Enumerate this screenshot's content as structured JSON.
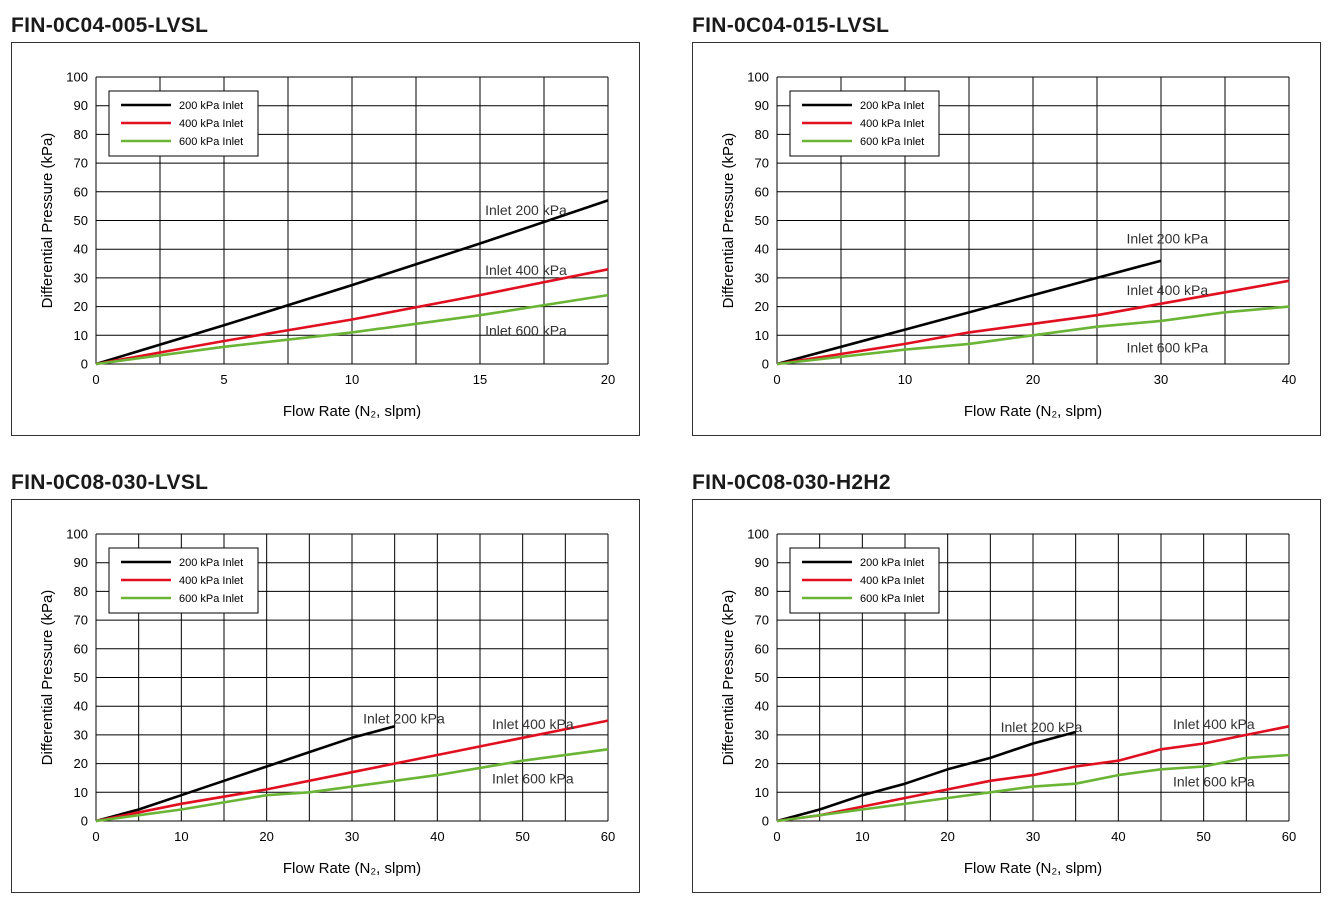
{
  "colors": {
    "s200": "#000000",
    "s400": "#e01020",
    "s600": "#6ab536"
  },
  "chart_data": [
    {
      "type": "line",
      "title": "FIN-0C04-005-LVSL",
      "xlabel": "Flow Rate (N₂, slpm)",
      "ylabel": "Differential Pressure (kPa)",
      "xlim": [
        0,
        20
      ],
      "ylim": [
        0,
        100
      ],
      "xticks": [
        0,
        5,
        10,
        15,
        20
      ],
      "xgrid_step": 2.5,
      "yticks": [
        0,
        10,
        20,
        30,
        40,
        50,
        60,
        70,
        80,
        90,
        100
      ],
      "legend": [
        "200 kPa Inlet",
        "400 kPa Inlet",
        "600 kPa Inlet"
      ],
      "series": [
        {
          "name": "200 kPa Inlet",
          "x": [
            0,
            5,
            10,
            15,
            20
          ],
          "values": [
            0,
            13.5,
            27.5,
            42,
            57
          ]
        },
        {
          "name": "400 kPa Inlet",
          "x": [
            0,
            5,
            10,
            15,
            20
          ],
          "values": [
            0,
            8,
            15.5,
            24,
            33
          ]
        },
        {
          "name": "600 kPa Inlet",
          "x": [
            0,
            5,
            10,
            15,
            20
          ],
          "values": [
            0,
            6,
            11,
            17,
            24
          ]
        }
      ],
      "annotations": [
        {
          "text": "Inlet 200 kPa",
          "x": 15.2,
          "y": 52
        },
        {
          "text": "Inlet 400 kPa",
          "x": 15.2,
          "y": 31
        },
        {
          "text": "Inlet 600 kPa",
          "x": 15.2,
          "y": 10
        }
      ]
    },
    {
      "type": "line",
      "title": "FIN-0C04-015-LVSL",
      "xlabel": "Flow Rate (N₂, slpm)",
      "ylabel": "Differential Pressure (kPa)",
      "xlim": [
        0,
        40
      ],
      "ylim": [
        0,
        100
      ],
      "xticks": [
        0,
        10,
        20,
        30,
        40
      ],
      "xgrid_step": 5,
      "yticks": [
        0,
        10,
        20,
        30,
        40,
        50,
        60,
        70,
        80,
        90,
        100
      ],
      "legend": [
        "200 kPa Inlet",
        "400 kPa Inlet",
        "600 kPa Inlet"
      ],
      "series": [
        {
          "name": "200 kPa Inlet",
          "x": [
            0,
            10,
            20,
            25,
            30
          ],
          "values": [
            0,
            12,
            24,
            30,
            36
          ]
        },
        {
          "name": "400 kPa Inlet",
          "x": [
            0,
            10,
            15,
            20,
            25,
            30,
            35,
            40
          ],
          "values": [
            0,
            7,
            11,
            14,
            17,
            21,
            25,
            29
          ]
        },
        {
          "name": "600 kPa Inlet",
          "x": [
            0,
            10,
            15,
            20,
            25,
            30,
            35,
            40
          ],
          "values": [
            0,
            5,
            7,
            10,
            13,
            15,
            18,
            20
          ]
        }
      ],
      "annotations": [
        {
          "text": "Inlet 200 kPa",
          "x": 27.3,
          "y": 42
        },
        {
          "text": "Inlet 400 kPa",
          "x": 27.3,
          "y": 24
        },
        {
          "text": "Inlet 600 kPa",
          "x": 27.3,
          "y": 4
        }
      ]
    },
    {
      "type": "line",
      "title": "FIN-0C08-030-LVSL",
      "xlabel": "Flow Rate (N₂, slpm)",
      "ylabel": "Differential Pressure (kPa)",
      "xlim": [
        0,
        60
      ],
      "ylim": [
        0,
        100
      ],
      "xticks": [
        0,
        10,
        20,
        30,
        40,
        50,
        60
      ],
      "xgrid_step": 5,
      "yticks": [
        0,
        10,
        20,
        30,
        40,
        50,
        60,
        70,
        80,
        90,
        100
      ],
      "legend": [
        "200 kPa Inlet",
        "400 kPa Inlet",
        "600 kPa Inlet"
      ],
      "series": [
        {
          "name": "200 kPa Inlet",
          "x": [
            0,
            5,
            10,
            15,
            20,
            25,
            30,
            35
          ],
          "values": [
            0,
            4,
            9,
            14,
            19,
            24,
            29,
            33
          ]
        },
        {
          "name": "400 kPa Inlet",
          "x": [
            0,
            10,
            20,
            30,
            40,
            50,
            60
          ],
          "values": [
            0,
            6,
            11,
            17,
            23,
            29,
            35
          ]
        },
        {
          "name": "600 kPa Inlet",
          "x": [
            0,
            10,
            20,
            25,
            30,
            40,
            50,
            60
          ],
          "values": [
            0,
            4,
            9,
            10,
            12,
            16,
            21,
            25
          ]
        }
      ],
      "annotations": [
        {
          "text": "Inlet 200 kPa",
          "x": 31.3,
          "y": 34
        },
        {
          "text": "Inlet 400 kPa",
          "x": 46.4,
          "y": 32
        },
        {
          "text": "Inlet 600 kPa",
          "x": 46.4,
          "y": 13
        }
      ]
    },
    {
      "type": "line",
      "title": "FIN-0C08-030-H2H2",
      "xlabel": "Flow Rate (N₂, slpm)",
      "ylabel": "Differential Pressure (kPa)",
      "xlim": [
        0,
        60
      ],
      "ylim": [
        0,
        100
      ],
      "xticks": [
        0,
        10,
        20,
        30,
        40,
        50,
        60
      ],
      "xgrid_step": 5,
      "yticks": [
        0,
        10,
        20,
        30,
        40,
        50,
        60,
        70,
        80,
        90,
        100
      ],
      "legend": [
        "200 kPa Inlet",
        "400 kPa Inlet",
        "600 kPa Inlet"
      ],
      "series": [
        {
          "name": "200 kPa Inlet",
          "x": [
            0,
            5,
            10,
            15,
            20,
            25,
            30,
            35
          ],
          "values": [
            0,
            4,
            9,
            13,
            18,
            22,
            27,
            31
          ]
        },
        {
          "name": "400 kPa Inlet",
          "x": [
            0,
            5,
            10,
            15,
            20,
            25,
            30,
            35,
            40,
            45,
            50,
            55,
            60
          ],
          "values": [
            0,
            2,
            5,
            8,
            11,
            14,
            16,
            19,
            21,
            25,
            27,
            30,
            33
          ]
        },
        {
          "name": "600 kPa Inlet",
          "x": [
            0,
            10,
            20,
            25,
            30,
            35,
            40,
            45,
            50,
            55,
            60
          ],
          "values": [
            0,
            4,
            8,
            10,
            12,
            13,
            16,
            18,
            19,
            22,
            23
          ]
        }
      ],
      "annotations": [
        {
          "text": "Inlet 200 kPa",
          "x": 26.2,
          "y": 31
        },
        {
          "text": "Inlet 400 kPa",
          "x": 46.4,
          "y": 32
        },
        {
          "text": "Inlet 600 kPa",
          "x": 46.4,
          "y": 12
        }
      ]
    }
  ]
}
